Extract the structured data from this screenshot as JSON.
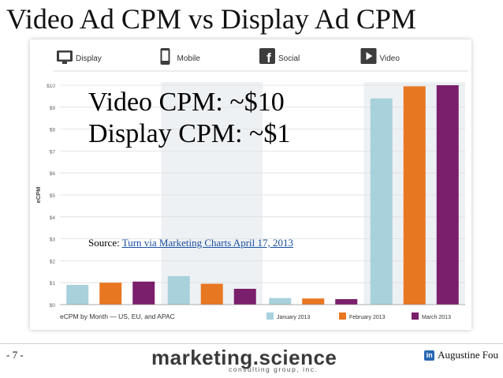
{
  "slide": {
    "title": "Video Ad CPM vs Display Ad CPM",
    "page_number": "- 7 -",
    "brand": "marketing.science",
    "brand_sub": "consulting group, inc.",
    "author": "Augustine Fou",
    "author_icon": "linkedin-icon"
  },
  "overlay": {
    "line1": "Video CPM: ~$10",
    "line2": "Display CPM: ~$1",
    "source_label": "Source:",
    "source_link": "Turn via Marketing Charts April 17, 2013"
  },
  "chart_data": {
    "type": "bar",
    "categories": [
      "Display",
      "Mobile",
      "Social",
      "Video"
    ],
    "category_icons": [
      "monitor-icon",
      "phone-icon",
      "facebook-icon",
      "film-icon"
    ],
    "series": [
      {
        "name": "January 2013",
        "values": [
          0.9,
          1.3,
          0.3,
          9.4
        ],
        "color": "#a8d1dc"
      },
      {
        "name": "February 2013",
        "values": [
          1.0,
          0.95,
          0.28,
          9.95
        ],
        "color": "#e87722"
      },
      {
        "name": "March 2013",
        "values": [
          1.05,
          0.72,
          0.25,
          10.0
        ],
        "color": "#7a1f6b"
      }
    ],
    "ylabel": "eCPM",
    "ylim": [
      0,
      10
    ],
    "yticks": [
      "$0",
      "$1",
      "$2",
      "$3",
      "$4",
      "$5",
      "$6",
      "$7",
      "$8",
      "$9",
      "$10"
    ],
    "caption": "eCPM by Month — US, EU, and APAC",
    "legend_position": "bottom-right",
    "grid": true
  }
}
